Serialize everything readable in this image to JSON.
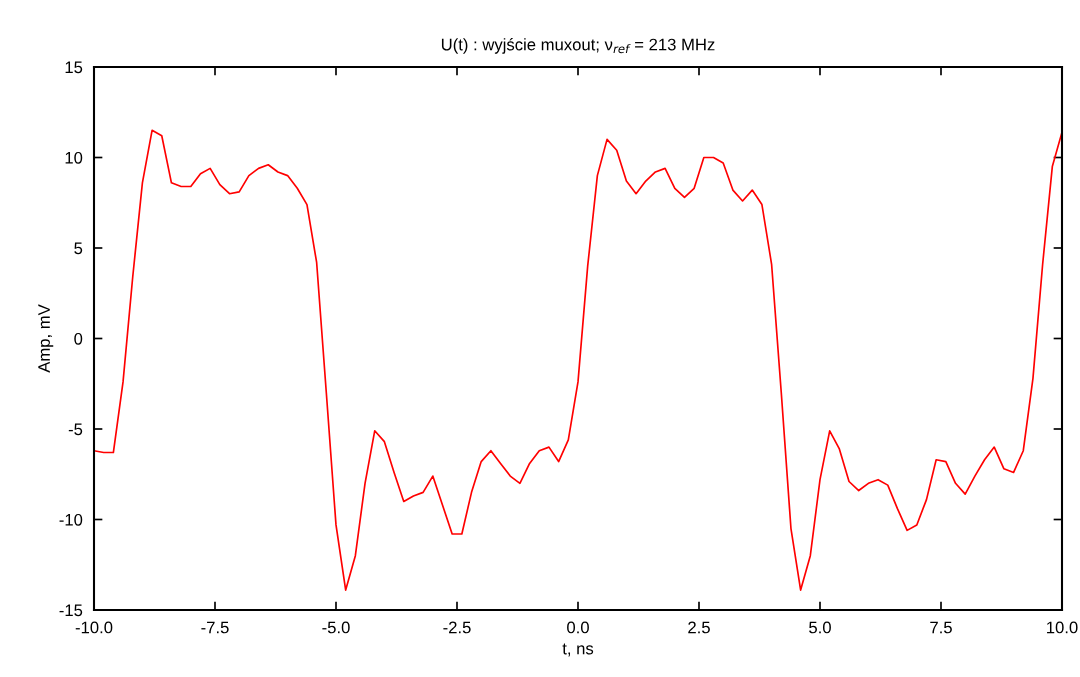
{
  "chart_data": {
    "type": "line",
    "title": "U(t) : wyjście muxout; ν$_{ref}$ = 213 MHz",
    "xlabel": "t, ns",
    "ylabel": "Amp, mV",
    "x": [
      -10,
      -9.8,
      -9.6,
      -9.4,
      -9.2,
      -9.0,
      -8.8,
      -8.6,
      -8.4,
      -8.2,
      -8.0,
      -7.8,
      -7.6,
      -7.4,
      -7.2,
      -7.0,
      -6.8,
      -6.6,
      -6.4,
      -6.2,
      -6.0,
      -5.8,
      -5.6,
      -5.4,
      -5.2,
      -5.0,
      -4.8,
      -4.6,
      -4.4,
      -4.2,
      -4.0,
      -3.8,
      -3.6,
      -3.4,
      -3.2,
      -3.0,
      -2.8,
      -2.6,
      -2.4,
      -2.2,
      -2.0,
      -1.8,
      -1.6,
      -1.4,
      -1.2,
      -1.0,
      -0.8,
      -0.6,
      -0.4,
      -0.2,
      0.0,
      0.2,
      0.4,
      0.6,
      0.8,
      1.0,
      1.2,
      1.4,
      1.6,
      1.8,
      2.0,
      2.2,
      2.4,
      2.6,
      2.8,
      3.0,
      3.2,
      3.4,
      3.6,
      3.8,
      4.0,
      4.2,
      4.4,
      4.6,
      4.8,
      5.0,
      5.2,
      5.4,
      5.6,
      5.8,
      6.0,
      6.2,
      6.4,
      6.6,
      6.8,
      7.0,
      7.2,
      7.4,
      7.6,
      7.8,
      8.0,
      8.2,
      8.4,
      8.6,
      8.8,
      9.0,
      9.2,
      9.4,
      9.6,
      9.8,
      10.0
    ],
    "series": [
      {
        "color": "#ff0000",
        "values": [
          -6.2,
          -6.3,
          -6.3,
          -2.4,
          3.4,
          8.6,
          11.5,
          11.2,
          8.6,
          8.4,
          8.4,
          9.1,
          9.4,
          8.5,
          8.0,
          8.1,
          9.0,
          9.4,
          9.6,
          9.2,
          9.0,
          8.3,
          7.4,
          4.2,
          -3.0,
          -10.3,
          -13.9,
          -12.0,
          -8.0,
          -5.1,
          -5.7,
          -7.4,
          -9.0,
          -8.7,
          -8.5,
          -7.6,
          -9.2,
          -10.8,
          -10.8,
          -8.5,
          -6.8,
          -6.2,
          -6.9,
          -7.6,
          -8.0,
          -6.9,
          -6.2,
          -6.0,
          -6.8,
          -5.6,
          -2.4,
          4.0,
          9.0,
          11.0,
          10.4,
          8.7,
          8.0,
          8.7,
          9.2,
          9.4,
          8.3,
          7.8,
          8.3,
          10.0,
          10.0,
          9.7,
          8.2,
          7.6,
          8.2,
          7.4,
          4.1,
          -3.0,
          -10.5,
          -13.9,
          -12.0,
          -7.8,
          -5.1,
          -6.1,
          -7.9,
          -8.4,
          -8.0,
          -7.8,
          -8.1,
          -9.4,
          -10.6,
          -10.3,
          -8.9,
          -6.7,
          -6.8,
          -8.0,
          -8.6,
          -7.6,
          -6.7,
          -6.0,
          -7.2,
          -7.4,
          -6.2,
          -2.2,
          4.1,
          9.5,
          11.4
        ]
      }
    ],
    "xlim": [
      -10,
      10
    ],
    "ylim": [
      -15,
      15
    ],
    "xticks": [
      {
        "value": -10,
        "label": "-10.0"
      },
      {
        "value": -7.5,
        "label": "-7.5"
      },
      {
        "value": -5,
        "label": "-5.0"
      },
      {
        "value": -2.5,
        "label": "-2.5"
      },
      {
        "value": 0,
        "label": "0.0"
      },
      {
        "value": 2.5,
        "label": "2.5"
      },
      {
        "value": 5,
        "label": "5.0"
      },
      {
        "value": 7.5,
        "label": "7.5"
      },
      {
        "value": 10,
        "label": "10.0"
      }
    ],
    "yticks": [
      -15,
      -10,
      -5,
      0,
      5,
      10,
      15
    ],
    "grid": false,
    "marker": "none",
    "line_style": "solid"
  }
}
